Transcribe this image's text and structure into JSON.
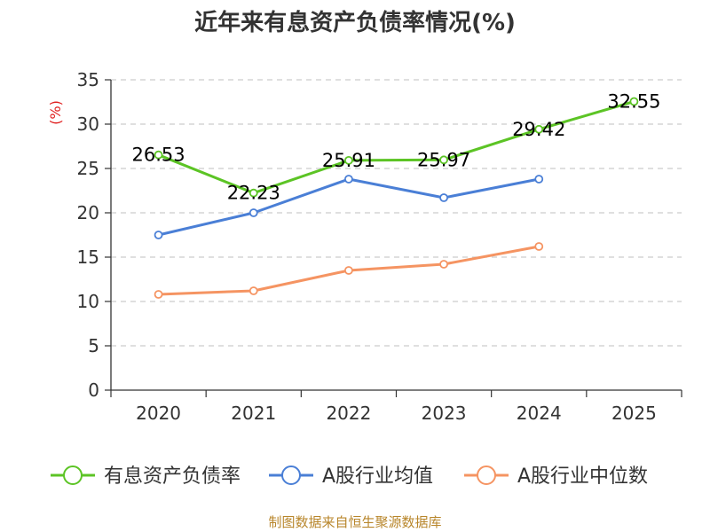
{
  "chart_data": {
    "type": "line",
    "title": "近年来有息资产负债率情况(%)",
    "xlabel": "",
    "ylabel": "(%)",
    "categories": [
      "2020",
      "2021",
      "2022",
      "2023",
      "2024",
      "2025"
    ],
    "ylim": [
      0,
      35
    ],
    "yticks": [
      0,
      5,
      10,
      15,
      20,
      25,
      30,
      35
    ],
    "grid": true,
    "legend_position": "bottom",
    "series": [
      {
        "name": "有息资产负债率",
        "color": "#5cc425",
        "values": [
          26.53,
          22.23,
          25.91,
          25.97,
          29.42,
          32.55
        ],
        "labels": [
          "26.53",
          "22.23",
          "25.91",
          "25.97",
          "29.42",
          "32.55"
        ],
        "show_labels": true
      },
      {
        "name": "A股行业均值",
        "color": "#4a7fd6",
        "values": [
          17.5,
          20.0,
          23.8,
          21.7,
          23.8,
          null
        ],
        "show_labels": false
      },
      {
        "name": "A股行业中位数",
        "color": "#f59462",
        "values": [
          10.8,
          11.2,
          13.5,
          14.2,
          16.2,
          null
        ],
        "show_labels": false
      }
    ],
    "source": "制图数据来自恒生聚源数据库"
  }
}
